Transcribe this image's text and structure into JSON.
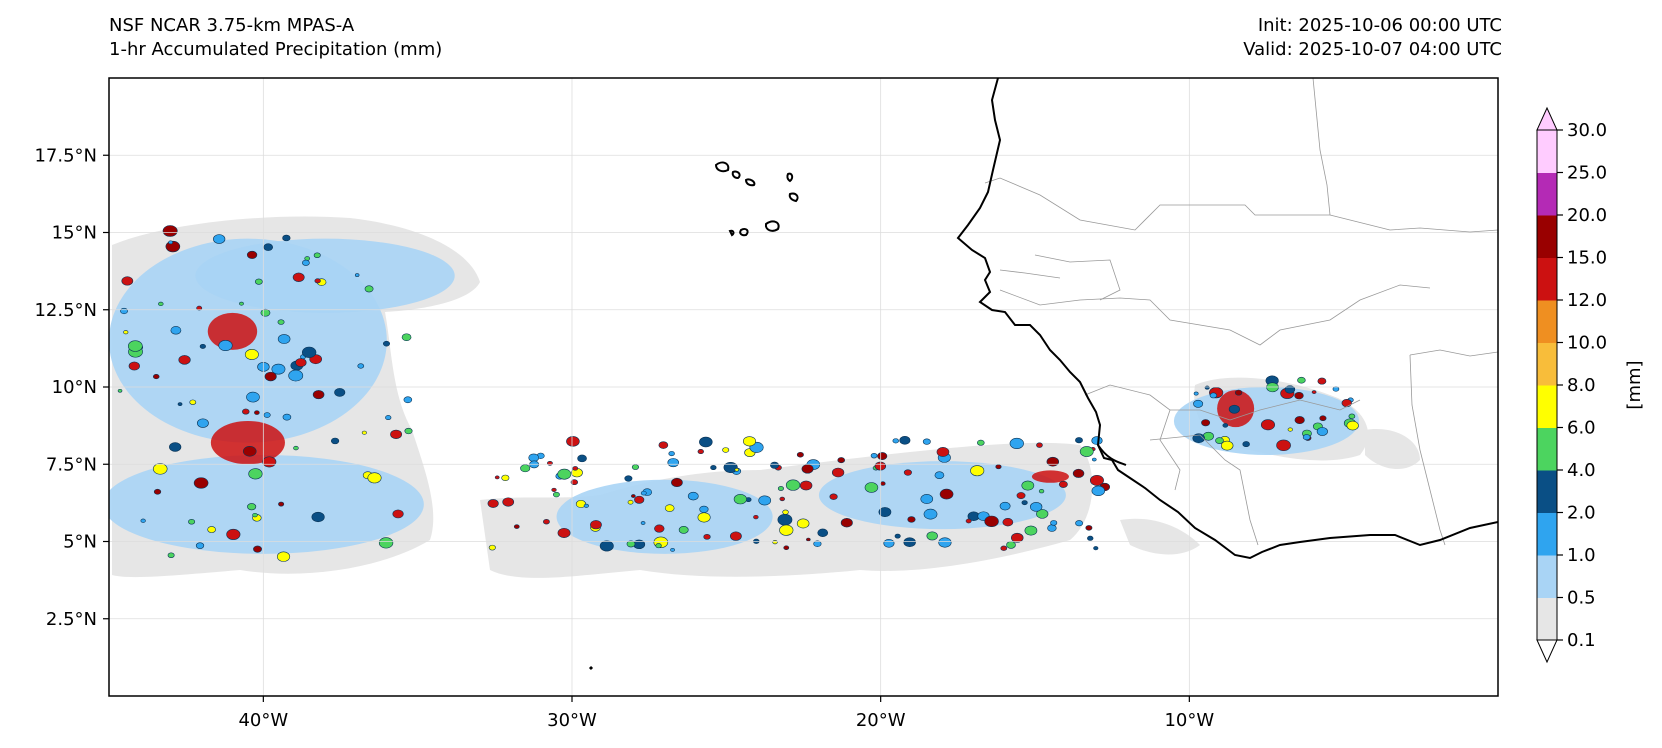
{
  "titles": {
    "model": "NSF NCAR 3.75-km MPAS-A",
    "field": "1-hr Accumulated Precipitation (mm)",
    "init": "Init: 2025-10-06 00:00 UTC",
    "valid": "Valid: 2025-10-07 04:00 UTC"
  },
  "map": {
    "lon_range": [
      -45,
      0
    ],
    "lat_range": [
      0,
      20
    ],
    "lat_ticks": [
      {
        "value": 2.5,
        "label": "2.5°N"
      },
      {
        "value": 5,
        "label": "5°N"
      },
      {
        "value": 7.5,
        "label": "7.5°N"
      },
      {
        "value": 10,
        "label": "10°N"
      },
      {
        "value": 12.5,
        "label": "12.5°N"
      },
      {
        "value": 15,
        "label": "15°N"
      },
      {
        "value": 17.5,
        "label": "17.5°N"
      }
    ],
    "lon_ticks": [
      {
        "value": -40,
        "label": "40°W"
      },
      {
        "value": -30,
        "label": "30°W"
      },
      {
        "value": -20,
        "label": "20°W"
      },
      {
        "value": -10,
        "label": "10°W"
      }
    ]
  },
  "colorbar": {
    "unit_label": "[mm]",
    "levels": [
      "0.1",
      "0.5",
      "1.0",
      "2.0",
      "4.0",
      "6.0",
      "8.0",
      "10.0",
      "12.0",
      "15.0",
      "20.0",
      "25.0",
      "30.0"
    ],
    "colors": [
      "#e6e6e6",
      "#a9d4f5",
      "#2fa4ef",
      "#0a4f85",
      "#4cd45f",
      "#ffff00",
      "#f8bd3a",
      "#ef8f21",
      "#cc1111",
      "#990000",
      "#b42ab5",
      "#ffccff"
    ],
    "extend_top_color": "#ffccff",
    "extend_bottom_color": "#ffffff"
  },
  "precip_areas": [
    {
      "name": "northwest-system",
      "level": 1,
      "lon": -40.5,
      "lat": 11.5,
      "rx": 4.5,
      "ry": 3.3
    },
    {
      "name": "northwest-arm",
      "level": 1,
      "lon": -38,
      "lat": 13.6,
      "rx": 4.2,
      "ry": 1.2
    },
    {
      "name": "southwest-band",
      "level": 1,
      "lon": -40,
      "lat": 6.2,
      "rx": 5.2,
      "ry": 1.6
    },
    {
      "name": "central-band",
      "level": 1,
      "lon": -27,
      "lat": 5.8,
      "rx": 3.5,
      "ry": 1.2
    },
    {
      "name": "itcz-east",
      "level": 1,
      "lon": -18,
      "lat": 6.5,
      "rx": 4,
      "ry": 1.1
    },
    {
      "name": "guinea-highlands",
      "level": 1,
      "lon": -7.5,
      "lat": 8.9,
      "rx": 3,
      "ry": 1.1
    },
    {
      "name": "west-africa-core",
      "level": 8,
      "lon": -8.5,
      "lat": 9.3,
      "rx": 0.6,
      "ry": 0.6
    },
    {
      "name": "northwest-core",
      "level": 8,
      "lon": -41,
      "lat": 11.8,
      "rx": 0.8,
      "ry": 0.6
    },
    {
      "name": "southwest-core",
      "level": 8,
      "lon": -40.5,
      "lat": 8.2,
      "rx": 1.2,
      "ry": 0.7
    },
    {
      "name": "coastal-core",
      "level": 8,
      "lon": -14.5,
      "lat": 7.1,
      "rx": 0.6,
      "ry": 0.2
    }
  ]
}
